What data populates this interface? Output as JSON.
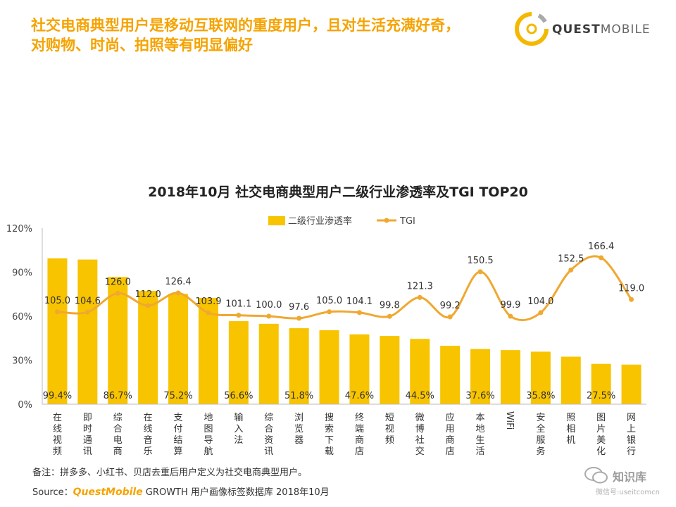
{
  "headline": {
    "line1": "社交电商典型用户是移动互联网的重度用户，且对生活充满好奇，",
    "line2": "对购物、时尚、拍照等有明显偏好"
  },
  "logo": {
    "text_bold": "QUEST",
    "text_light": "MOBILE"
  },
  "chart_data": {
    "type": "bar",
    "title": "2018年10月 社交电商典型用户二级行业渗透率及TGI TOP20",
    "categories": [
      "在线视频",
      "即时通讯",
      "综合电商",
      "在线音乐",
      "支付结算",
      "地图导航",
      "输入法",
      "综合资讯",
      "浏览器",
      "搜索下载",
      "终端商店",
      "短视频",
      "微博社交",
      "应用商店",
      "本地生活",
      "WiFi",
      "安全服务",
      "照相机",
      "图片美化",
      "网上银行"
    ],
    "series": [
      {
        "name": "二级行业渗透率",
        "type": "bar",
        "color": "#f8c400",
        "values": [
          99.4,
          98.6,
          86.7,
          77.2,
          75.2,
          72.5,
          56.6,
          54.8,
          51.8,
          50.4,
          47.6,
          46.5,
          44.5,
          39.8,
          37.6,
          36.9,
          35.8,
          32.4,
          27.5,
          27.0
        ],
        "labels": [
          "99.4%",
          "",
          "86.7%",
          "",
          "75.2%",
          "",
          "56.6%",
          "",
          "51.8%",
          "",
          "47.6%",
          "",
          "44.5%",
          "",
          "37.6%",
          "",
          "35.8%",
          "",
          "27.5%",
          ""
        ]
      },
      {
        "name": "TGI",
        "type": "line",
        "color": "#f0a830",
        "values": [
          105.0,
          104.6,
          126.0,
          112.0,
          126.4,
          103.9,
          101.1,
          100.0,
          97.6,
          105.0,
          104.1,
          99.8,
          121.3,
          99.2,
          150.5,
          99.9,
          104.0,
          152.5,
          166.4,
          119.0
        ],
        "labels": [
          "105.0",
          "104.6",
          "126.0",
          "112.0",
          "126.4",
          "103.9",
          "101.1",
          "100.0",
          "97.6",
          "105.0",
          "104.1",
          "99.8",
          "121.3",
          "99.2",
          "150.5",
          "99.9",
          "104.0",
          "152.5",
          "166.4",
          "119.0"
        ]
      }
    ],
    "y_axis": {
      "ticks": [
        "0%",
        "30%",
        "60%",
        "90%",
        "120%"
      ],
      "min": 0,
      "max": 120
    },
    "tgi_axis": {
      "min": 0,
      "max": 200
    },
    "legend": {
      "position": "top-center"
    },
    "grid": false
  },
  "note": "备注：拼多多、小红书、贝店去重后用户定义为社交电商典型用户。",
  "source": {
    "prefix": "Source：",
    "brand": "QuestMobile",
    "rest": " GROWTH 用户画像标签数据库 2018年10月"
  },
  "watermark": {
    "name": "知识库",
    "sub": "微信号:useitcomcn"
  }
}
